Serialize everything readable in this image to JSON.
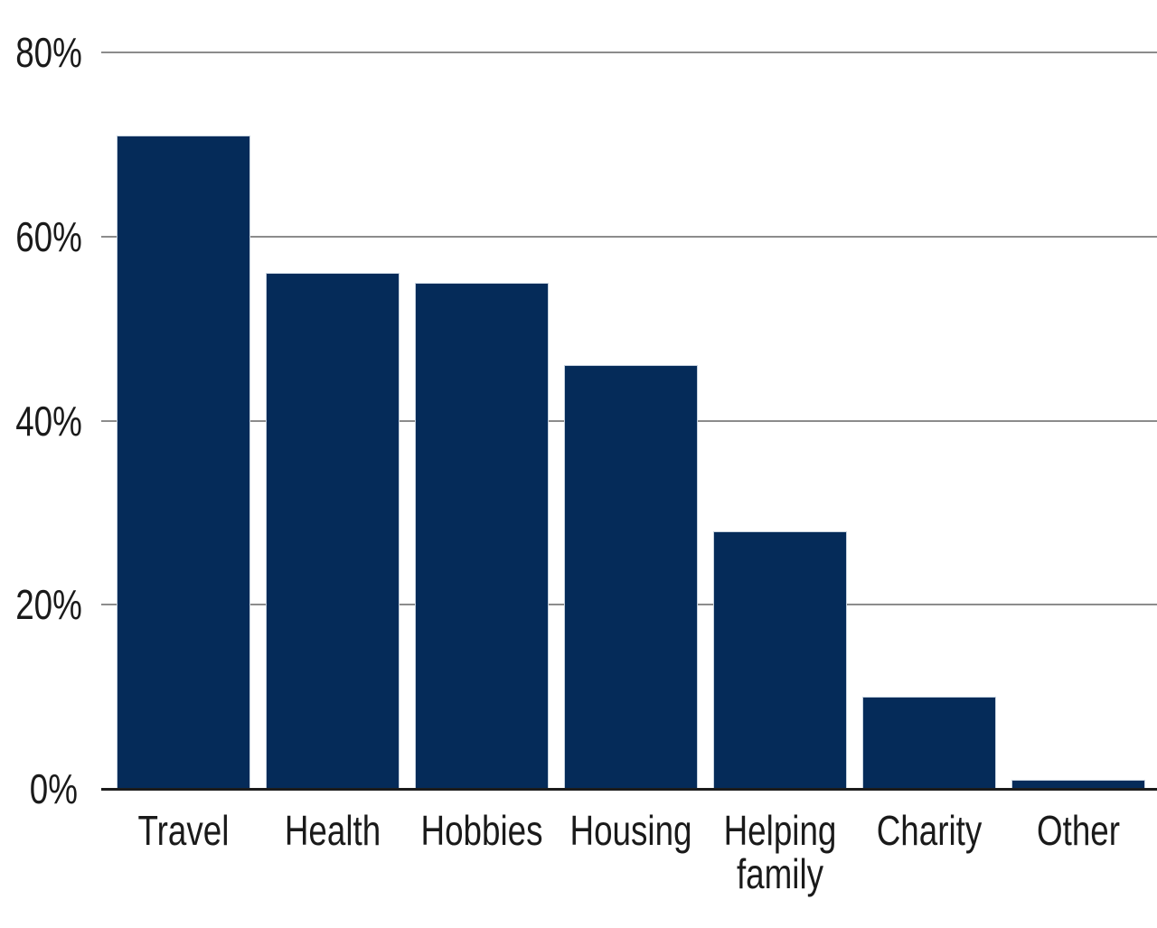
{
  "chart_data": {
    "type": "bar",
    "categories": [
      "Travel",
      "Health",
      "Hobbies",
      "Housing",
      "Helping\nfamily",
      "Charity",
      "Other"
    ],
    "values": [
      71,
      56,
      55,
      46,
      28,
      10,
      1
    ],
    "title": "",
    "xlabel": "",
    "ylabel": "",
    "ylim": [
      0,
      80
    ],
    "yticks": [
      0,
      20,
      40,
      60,
      80
    ],
    "ytick_labels": [
      "0%",
      "20%",
      "40%",
      "60%",
      "80%"
    ],
    "grid": true,
    "legend": false,
    "legend_position": "none",
    "bar_color": "#052b59",
    "bar_edge_color": "#c6d2df",
    "gridline_color": "#8c8c8c",
    "axis_color": "#1c1c1c",
    "text_color": "#1a1a1a",
    "background_color": "#ffffff"
  }
}
